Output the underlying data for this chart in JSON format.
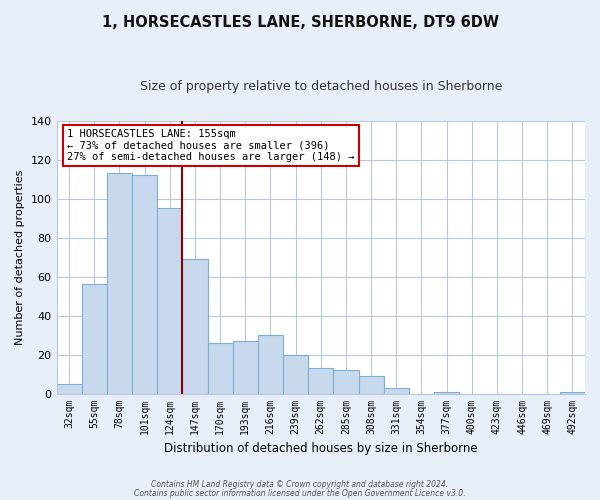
{
  "title": "1, HORSECASTLES LANE, SHERBORNE, DT9 6DW",
  "subtitle": "Size of property relative to detached houses in Sherborne",
  "xlabel": "Distribution of detached houses by size in Sherborne",
  "ylabel": "Number of detached properties",
  "categories": [
    "32sqm",
    "55sqm",
    "78sqm",
    "101sqm",
    "124sqm",
    "147sqm",
    "170sqm",
    "193sqm",
    "216sqm",
    "239sqm",
    "262sqm",
    "285sqm",
    "308sqm",
    "331sqm",
    "354sqm",
    "377sqm",
    "400sqm",
    "423sqm",
    "446sqm",
    "469sqm",
    "492sqm"
  ],
  "values": [
    5,
    56,
    113,
    112,
    95,
    69,
    26,
    27,
    30,
    20,
    13,
    12,
    9,
    3,
    0,
    1,
    0,
    0,
    0,
    0,
    1
  ],
  "bar_color": "#c8d9ee",
  "bar_edge_color": "#7bafd4",
  "marker_line_color": "#8b0000",
  "annotation_text": "1 HORSECASTLES LANE: 155sqm\n← 73% of detached houses are smaller (396)\n27% of semi-detached houses are larger (148) →",
  "annotation_box_color": "#ffffff",
  "annotation_box_edge": "#cc0000",
  "ylim": [
    0,
    140
  ],
  "yticks": [
    0,
    20,
    40,
    60,
    80,
    100,
    120,
    140
  ],
  "footer_line1": "Contains HM Land Registry data © Crown copyright and database right 2024.",
  "footer_line2": "Contains public sector information licensed under the Open Government Licence v3.0.",
  "bg_color": "#e8eef7",
  "plot_bg_color": "#ffffff",
  "grid_color": "#b8c8dc"
}
